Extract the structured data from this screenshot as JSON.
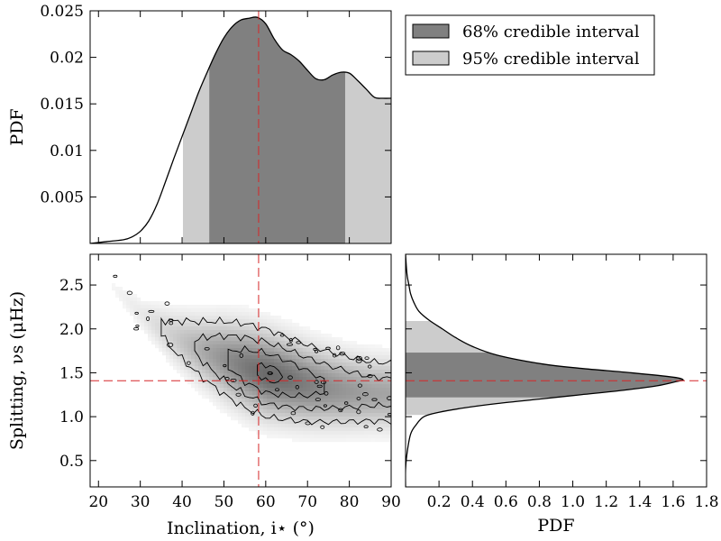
{
  "colors": {
    "ci68": "#808080",
    "ci95": "#cccccc",
    "median_line": "#d62728",
    "axis": "#000000"
  },
  "legend": {
    "placement": "top-right",
    "items": [
      {
        "label": "68% credible interval",
        "color": "#808080"
      },
      {
        "label": "95% credible interval",
        "color": "#cccccc"
      }
    ]
  },
  "chart_data": [
    {
      "type": "area",
      "panel": "inclination-marginal",
      "ylabel": "PDF",
      "xlim": [
        18,
        90
      ],
      "ylim": [
        0,
        0.025
      ],
      "yticks": [
        0.005,
        0.01,
        0.015,
        0.02,
        0.025
      ],
      "ytick_labels": [
        "0.005",
        "0.01",
        "0.015",
        "0.02",
        "0.025"
      ],
      "x": [
        18,
        22,
        26,
        28,
        30,
        32,
        34,
        36,
        38,
        40,
        42,
        44,
        46,
        48,
        50,
        52,
        54,
        56,
        58,
        60,
        62,
        64,
        66,
        68,
        70,
        72,
        74,
        76,
        78,
        80,
        82,
        84,
        86,
        88,
        90
      ],
      "y": [
        0.0,
        0.0002,
        0.0004,
        0.0007,
        0.0013,
        0.0024,
        0.0042,
        0.0066,
        0.0091,
        0.0115,
        0.0139,
        0.0163,
        0.0184,
        0.0204,
        0.0221,
        0.0233,
        0.024,
        0.0242,
        0.0243,
        0.0236,
        0.022,
        0.0208,
        0.0203,
        0.0196,
        0.0186,
        0.0177,
        0.0176,
        0.0181,
        0.0184,
        0.0183,
        0.0175,
        0.0166,
        0.0157,
        0.0156,
        0.0156
      ],
      "median": 58.3,
      "ci68": [
        46.5,
        79
      ],
      "ci95": [
        40.2,
        90
      ]
    },
    {
      "type": "heatmap",
      "panel": "joint-posterior",
      "xlabel": "Inclination, i⋆ (°)",
      "ylabel": "Splitting, νs (μHz)",
      "xlim": [
        18,
        90
      ],
      "ylim": [
        0.2,
        2.85
      ],
      "xticks": [
        20,
        30,
        40,
        50,
        60,
        70,
        80,
        90
      ],
      "yticks": [
        0.5,
        1.0,
        1.5,
        2.0,
        2.5
      ],
      "ytick_labels": [
        "0.5",
        "1.0",
        "1.5",
        "2.0",
        "2.5"
      ],
      "ridge": {
        "x": [
          22,
          30,
          38,
          44,
          50,
          55,
          60,
          65,
          70,
          75,
          80,
          85,
          90
        ],
        "center": [
          2.55,
          2.18,
          1.92,
          1.78,
          1.67,
          1.58,
          1.5,
          1.44,
          1.38,
          1.34,
          1.31,
          1.29,
          1.28
        ],
        "width": [
          0.08,
          0.13,
          0.2,
          0.24,
          0.28,
          0.3,
          0.3,
          0.29,
          0.28,
          0.27,
          0.26,
          0.25,
          0.25
        ],
        "weight": [
          0.05,
          0.15,
          0.35,
          0.55,
          0.75,
          0.9,
          1.0,
          0.95,
          0.85,
          0.75,
          0.68,
          0.62,
          0.6
        ]
      },
      "median": {
        "inclination": 58.3,
        "splitting": 1.41
      }
    },
    {
      "type": "area",
      "panel": "splitting-marginal",
      "orientation": "horizontal",
      "xlabel": "PDF",
      "xlim": [
        0,
        1.8
      ],
      "xticks": [
        0.2,
        0.4,
        0.6,
        0.8,
        1.0,
        1.2,
        1.4,
        1.6,
        1.8
      ],
      "xtick_labels": [
        "0.2",
        "0.4",
        "0.6",
        "0.8",
        "1.0",
        "1.2",
        "1.4",
        "1.6",
        "1.8"
      ],
      "splitting": [
        0.2,
        0.4,
        0.6,
        0.8,
        0.9,
        1.0,
        1.05,
        1.1,
        1.15,
        1.2,
        1.25,
        1.3,
        1.35,
        1.4,
        1.42,
        1.45,
        1.5,
        1.55,
        1.6,
        1.7,
        1.8,
        1.9,
        2.0,
        2.1,
        2.2,
        2.3,
        2.4,
        2.5,
        2.6,
        2.7,
        2.85
      ],
      "pdf": [
        0.0,
        0.0,
        0.01,
        0.03,
        0.06,
        0.11,
        0.2,
        0.35,
        0.55,
        0.8,
        1.05,
        1.3,
        1.5,
        1.62,
        1.66,
        1.6,
        1.35,
        1.05,
        0.82,
        0.55,
        0.4,
        0.3,
        0.22,
        0.14,
        0.08,
        0.05,
        0.03,
        0.02,
        0.01,
        0.005,
        0.0
      ],
      "median": 1.41,
      "ci68": [
        1.22,
        1.73
      ],
      "ci95": [
        1.02,
        2.09
      ]
    }
  ]
}
